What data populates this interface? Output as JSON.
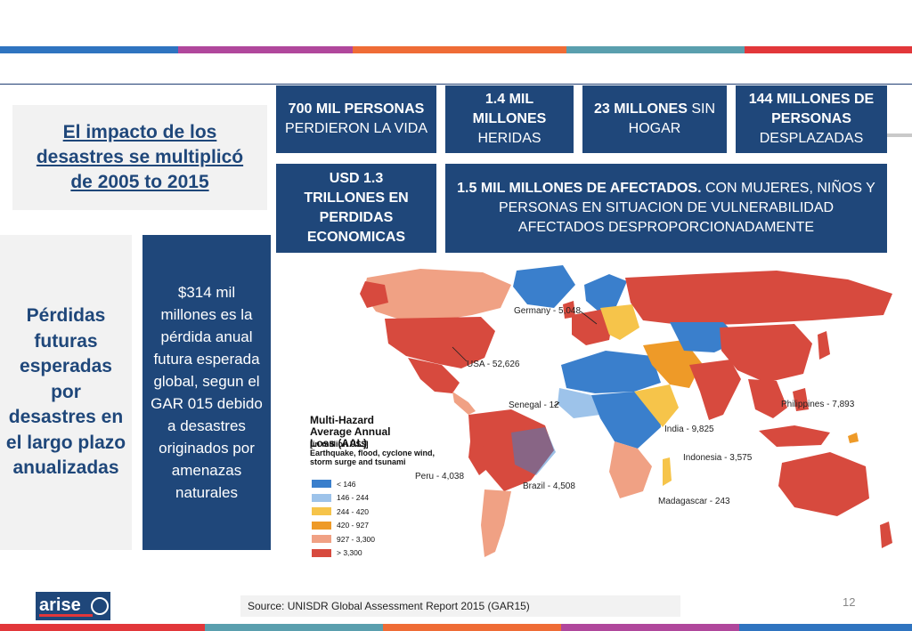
{
  "colors": {
    "accent_blue": "#1f477a",
    "panel_grey": "#f2f2f2"
  },
  "stats": [
    {
      "bold": "700 MIL PERSONAS",
      "rest": "PERDIERON LA VIDA"
    },
    {
      "bold": "1.4 MIL MILLONES",
      "rest": "HERIDAS"
    },
    {
      "bold": "23 MILLONES",
      "rest": "SIN HOGAR"
    },
    {
      "bold": "144 MILLONES DE PERSONAS",
      "rest": "DESPLAZADAS"
    },
    {
      "bold": "USD 1.3 TRILLONES EN PERDIDAS ECONOMICAS",
      "rest": ""
    },
    {
      "bold": "1.5 MIL MILLONES DE AFECTADOS.",
      "rest": "CON MUJERES, NIÑOS Y PERSONAS EN SITUACION DE VULNERABILIDAD AFECTADOS DESPROPORCIONADAMENTE"
    }
  ],
  "impact_heading": "El impacto de los desastres se multiplicó de 2005 to 2015",
  "futuras_heading": "Pérdidas futuras esperadas por desastres en el largo plazo anualizadas",
  "info_text": "$314 mil millones es la pérdida anual futura esperada global, segun el GAR 015 debido a desastres originados  por amenazas naturales",
  "map": {
    "legend_title": "Multi-Hazard Average Annual Loss (AAL)",
    "legend_unit": "[in million US$]",
    "legend_hazards": "Earthquake, flood, cyclone wind, storm surge and tsunami",
    "legend": [
      {
        "label": "< 146",
        "color": "#3a7fcc"
      },
      {
        "label": "146 - 244",
        "color": "#9dc3ea"
      },
      {
        "label": "244 - 420",
        "color": "#f6c44a"
      },
      {
        "label": "420 - 927",
        "color": "#ee9a28"
      },
      {
        "label": "927 - 3,300",
        "color": "#f0a184"
      },
      {
        "label": "> 3,300",
        "color": "#d74a3e"
      }
    ],
    "labels": [
      {
        "text": "Germany - 5,048"
      },
      {
        "text": "USA - 52,626"
      },
      {
        "text": "Senegal - 12"
      },
      {
        "text": "Philippines - 7,893"
      },
      {
        "text": "India - 9,825"
      },
      {
        "text": "Indonesia - 3,575"
      },
      {
        "text": "Peru - 4,038"
      },
      {
        "text": "Brazil - 4,508"
      },
      {
        "text": "Madagascar - 243"
      }
    ]
  },
  "source": "Source: UNISDR Global Assessment Report 2015 (GAR15)",
  "page_number": "12",
  "logo_text": "arise"
}
